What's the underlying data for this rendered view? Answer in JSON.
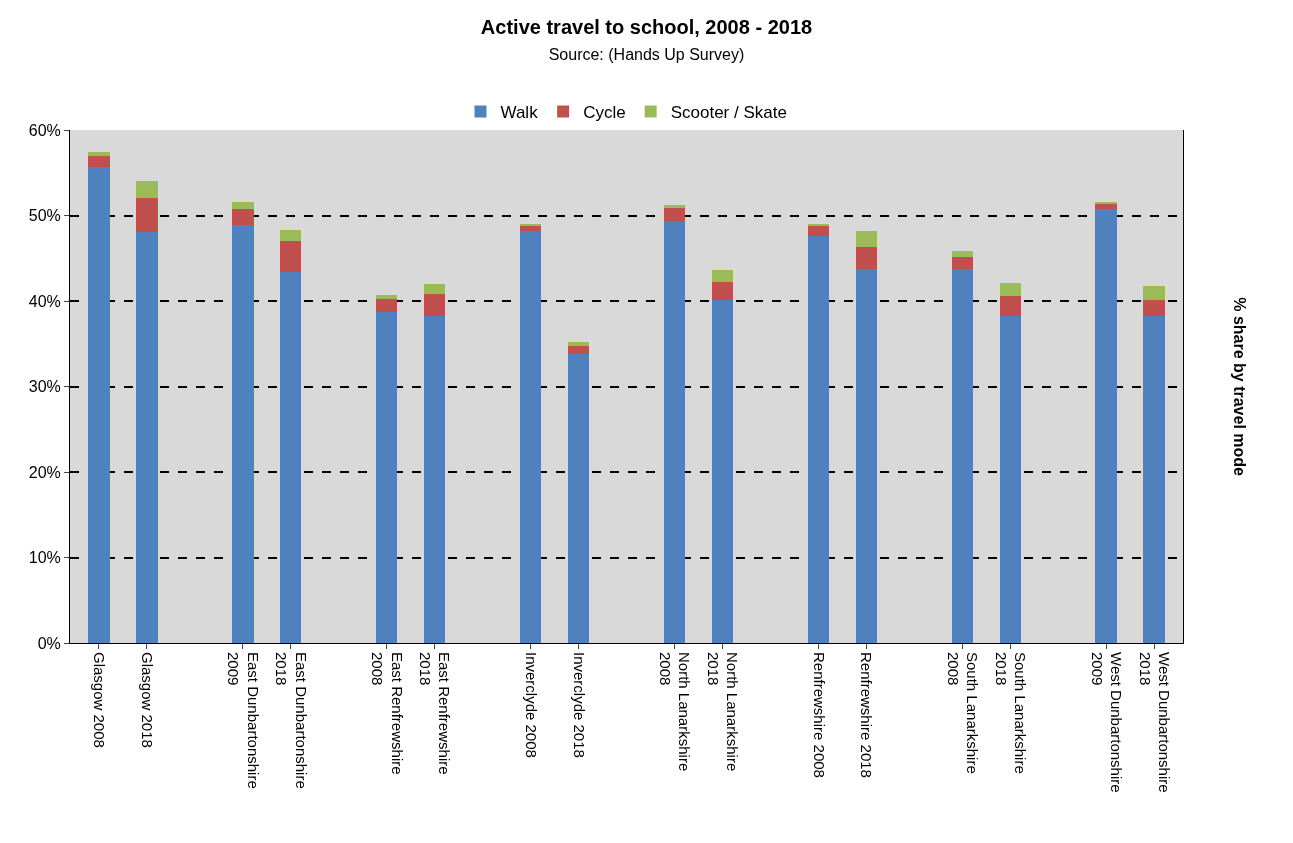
{
  "chart_data": {
    "type": "bar",
    "title": "Active travel to school, 2008 - 2018",
    "subtitle": "Source: (Hands Up Survey)",
    "ylabel": "% share by travel mode",
    "stacked": true,
    "legend": "top",
    "grid": "y",
    "categories": [
      "Glasgow 2008",
      "Glasgow 2018",
      null,
      "East Dunbartonshire\n2009",
      "East Dunbartonshire\n2018",
      null,
      "East Renfrewshire\n2008",
      "East Renfrewshire\n2018",
      null,
      "Inverclyde 2008",
      "Inverclyde 2018",
      null,
      "North Lanarkshire\n2008",
      "North Lanarkshire\n2018",
      null,
      "Renfrewshire 2008",
      "Renfrewshire 2018",
      null,
      "South Lanarkshire\n2008",
      "South Lanarkshire\n2018",
      null,
      "West Dunbartonshire\n2009",
      "West Dunbartonshire\n2018"
    ],
    "series": [
      {
        "name": "Walk",
        "color": "#4f81bd",
        "values": [
          55.7,
          48.1,
          null,
          48.9,
          43.4,
          null,
          38.7,
          38.3,
          null,
          48.2,
          33.8,
          null,
          49.4,
          40.1,
          null,
          47.6,
          43.8,
          null,
          43.7,
          38.3,
          null,
          50.8,
          38.2
        ]
      },
      {
        "name": "Cycle",
        "color": "#c0504d",
        "values": [
          1.3,
          4.0,
          null,
          1.9,
          3.6,
          null,
          1.5,
          2.5,
          null,
          0.6,
          0.9,
          null,
          1.5,
          2.1,
          null,
          1.2,
          2.5,
          null,
          1.4,
          2.3,
          null,
          0.5,
          1.9
        ]
      },
      {
        "name": "Scooter / Skate",
        "color": "#9bbb59",
        "values": [
          0.4,
          1.9,
          null,
          0.8,
          1.3,
          null,
          0.5,
          1.2,
          null,
          0.2,
          0.5,
          null,
          0.3,
          1.4,
          null,
          0.2,
          1.9,
          null,
          0.7,
          1.5,
          null,
          0.3,
          1.7
        ]
      }
    ],
    "ylim": [
      0,
      60
    ],
    "yticks": [
      {
        "value": 0,
        "label": "0%"
      },
      {
        "value": 10,
        "label": "10%"
      },
      {
        "value": 20,
        "label": "20%"
      },
      {
        "value": 30,
        "label": "30%"
      },
      {
        "value": 40,
        "label": "40%"
      },
      {
        "value": 50,
        "label": "50%"
      },
      {
        "value": 60,
        "label": "60%"
      }
    ]
  }
}
